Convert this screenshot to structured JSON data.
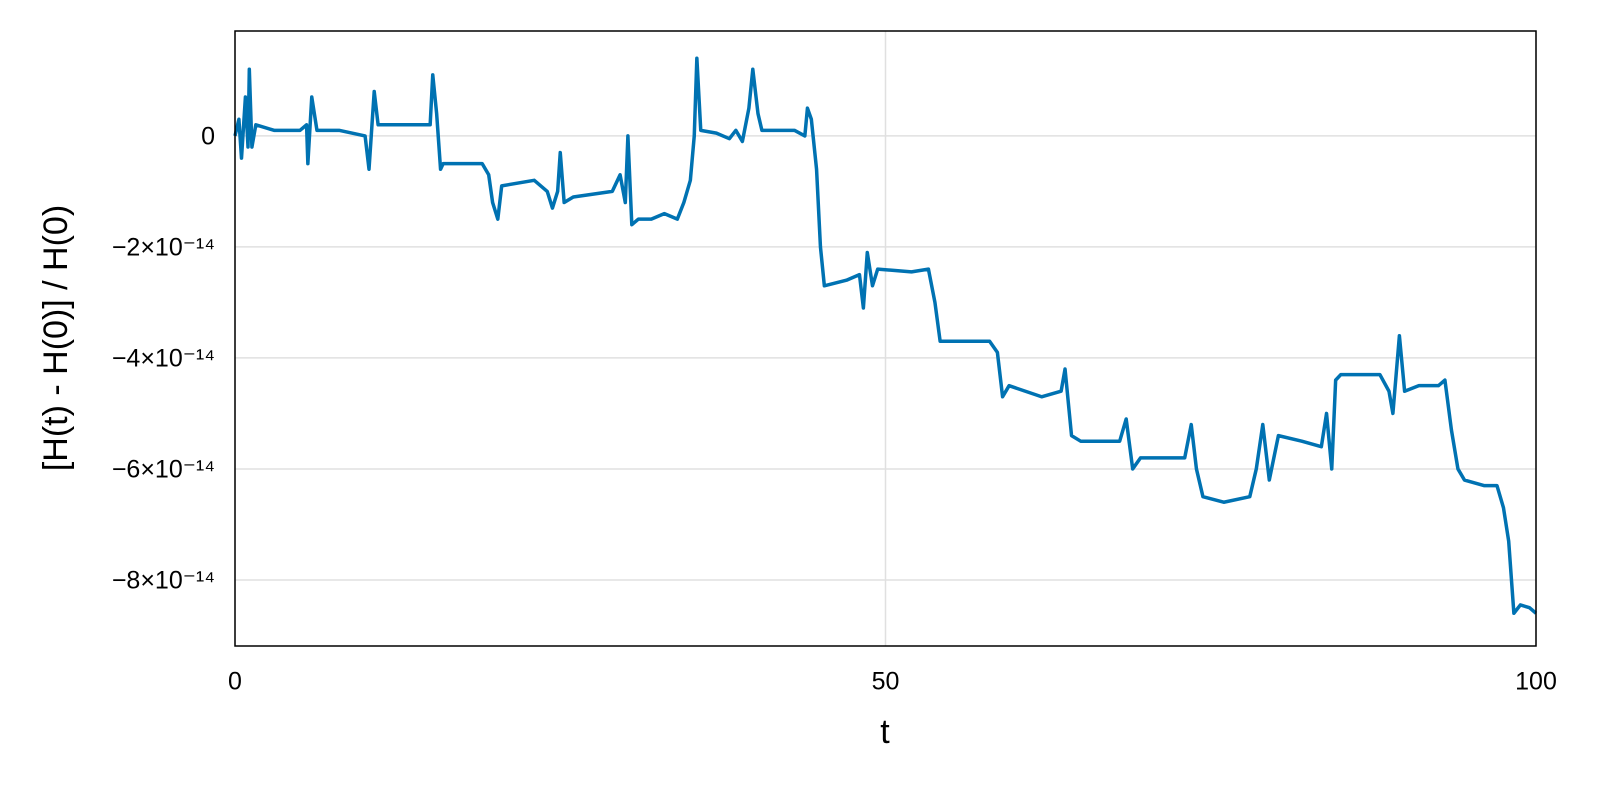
{
  "chart_data": {
    "type": "line",
    "xlabel": "t",
    "ylabel": "[H(t) - H(0)] / H(0)",
    "x": [
      0,
      0.3,
      0.5,
      0.8,
      1.0,
      1.1,
      1.3,
      1.6,
      3,
      5,
      5.5,
      5.6,
      5.9,
      6.3,
      8,
      10,
      10.3,
      10.7,
      11,
      14,
      15,
      15.2,
      15.5,
      15.8,
      16,
      19,
      19.5,
      19.8,
      20.2,
      20.5,
      23,
      24,
      24.4,
      24.8,
      25,
      25.3,
      26,
      29,
      29.6,
      30,
      30.2,
      30.5,
      31,
      32,
      33,
      34,
      34.5,
      35,
      35.3,
      35.5,
      35.8,
      37,
      38,
      38.5,
      39,
      39.5,
      39.8,
      40.2,
      40.5,
      43,
      43.8,
      44,
      44.3,
      44.7,
      45,
      45.3,
      47,
      48,
      48.3,
      48.6,
      49,
      49.4,
      52,
      53.3,
      53.8,
      54.2,
      56,
      58,
      58.6,
      59,
      59.5,
      62,
      63.5,
      63.8,
      64.3,
      65,
      68,
      68.5,
      69,
      69.6,
      73,
      73.5,
      73.9,
      74.4,
      76,
      78,
      78.5,
      79,
      79.5,
      80.2,
      82,
      83.5,
      83.9,
      84.3,
      84.6,
      85,
      88,
      88.7,
      89,
      89.5,
      89.9,
      91,
      92.5,
      93,
      93.5,
      94,
      94.5,
      96,
      97,
      97.5,
      97.9,
      98.3,
      98.8,
      99.5,
      100
    ],
    "series": [
      {
        "color": "#0072b2",
        "values": [
          0,
          3e-15,
          -4e-15,
          7e-15,
          -2e-15,
          1.2e-14,
          -2e-15,
          2e-15,
          1e-15,
          1e-15,
          2e-15,
          -5e-15,
          7e-15,
          1e-15,
          1e-15,
          0,
          -6e-15,
          8e-15,
          2e-15,
          2e-15,
          2e-15,
          1.1e-14,
          4e-15,
          -6e-15,
          -5e-15,
          -5e-15,
          -7e-15,
          -1.2e-14,
          -1.5e-14,
          -9e-15,
          -8e-15,
          -1e-14,
          -1.3e-14,
          -1e-14,
          -3e-15,
          -1.2e-14,
          -1.1e-14,
          -1e-14,
          -7e-15,
          -1.2e-14,
          0,
          -1.6e-14,
          -1.5e-14,
          -1.5e-14,
          -1.4e-14,
          -1.5e-14,
          -1.2e-14,
          -8e-15,
          0,
          1.4e-14,
          1e-15,
          5e-16,
          -5e-16,
          1e-15,
          -1e-15,
          5e-15,
          1.2e-14,
          4e-15,
          1e-15,
          1e-15,
          0,
          5e-15,
          3e-15,
          -6e-15,
          -2e-14,
          -2.7e-14,
          -2.6e-14,
          -2.5e-14,
          -3.1e-14,
          -2.1e-14,
          -2.7e-14,
          -2.4e-14,
          -2.45e-14,
          -2.4e-14,
          -3e-14,
          -3.7e-14,
          -3.7e-14,
          -3.7e-14,
          -3.9e-14,
          -4.7e-14,
          -4.5e-14,
          -4.7e-14,
          -4.6e-14,
          -4.2e-14,
          -5.4e-14,
          -5.5e-14,
          -5.5e-14,
          -5.1e-14,
          -6e-14,
          -5.8e-14,
          -5.8e-14,
          -5.2e-14,
          -6e-14,
          -6.5e-14,
          -6.6e-14,
          -6.5e-14,
          -6e-14,
          -5.2e-14,
          -6.2e-14,
          -5.4e-14,
          -5.5e-14,
          -5.6e-14,
          -5e-14,
          -6e-14,
          -4.4e-14,
          -4.3e-14,
          -4.3e-14,
          -4.6e-14,
          -5e-14,
          -3.6e-14,
          -4.6e-14,
          -4.5e-14,
          -4.5e-14,
          -4.4e-14,
          -5.3e-14,
          -6e-14,
          -6.2e-14,
          -6.3e-14,
          -6.3e-14,
          -6.7e-14,
          -7.3e-14,
          -8.6e-14,
          -8.45e-14,
          -8.5e-14,
          -8.6e-14
        ]
      }
    ],
    "xlim": [
      0,
      100
    ],
    "xticks": [
      0,
      50,
      100
    ],
    "ylim": [
      -9.19e-14,
      1.89e-14
    ],
    "yticks": [
      {
        "value": -8e-14,
        "label": "−8×10⁻¹⁴"
      },
      {
        "value": -6e-14,
        "label": "−6×10⁻¹⁴"
      },
      {
        "value": -4e-14,
        "label": "−4×10⁻¹⁴"
      },
      {
        "value": -2e-14,
        "label": "−2×10⁻¹⁴"
      },
      0
    ],
    "grid": true
  }
}
